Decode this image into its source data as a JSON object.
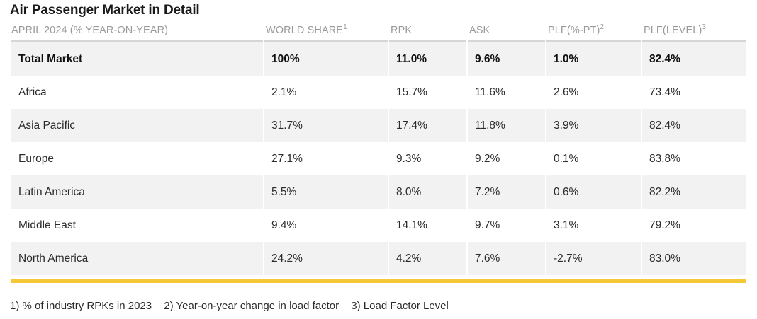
{
  "title": "Air Passenger Market in Detail",
  "headers": [
    {
      "label": "APRIL 2024 (% YEAR-ON-YEAR)",
      "sup": ""
    },
    {
      "label": "WORLD SHARE",
      "sup": "1"
    },
    {
      "label": "RPK",
      "sup": ""
    },
    {
      "label": "ASK",
      "sup": ""
    },
    {
      "label": "PLF(%-PT)",
      "sup": "2"
    },
    {
      "label": "PLF(LEVEL)",
      "sup": "3"
    }
  ],
  "rows": [
    [
      "Total Market",
      "100%",
      "11.0%",
      "9.6%",
      "1.0%",
      "82.4%"
    ],
    [
      "Africa",
      "2.1%",
      "15.7%",
      "11.6%",
      "2.6%",
      "73.4%"
    ],
    [
      "Asia Pacific",
      "31.7%",
      "17.4%",
      "11.8%",
      "3.9%",
      "82.4%"
    ],
    [
      "Europe",
      "27.1%",
      "9.3%",
      "9.2%",
      "0.1%",
      "83.8%"
    ],
    [
      "Latin America",
      "5.5%",
      "8.0%",
      "7.2%",
      "0.6%",
      "82.2%"
    ],
    [
      "Middle East",
      "9.4%",
      "14.1%",
      "9.7%",
      "3.1%",
      "79.2%"
    ],
    [
      "North America",
      "24.2%",
      "4.2%",
      "7.6%",
      "-2.7%",
      "83.0%"
    ]
  ],
  "footnotes": [
    "1) % of industry RPKs in 2023",
    "2) Year-on-year change in load factor",
    "3) Load Factor Level"
  ],
  "colors": {
    "accent_bar": "#f5c838",
    "row_shade": "#f2f2f2",
    "header_text": "#9a9a9a",
    "header_rule": "#d6d6d6"
  }
}
